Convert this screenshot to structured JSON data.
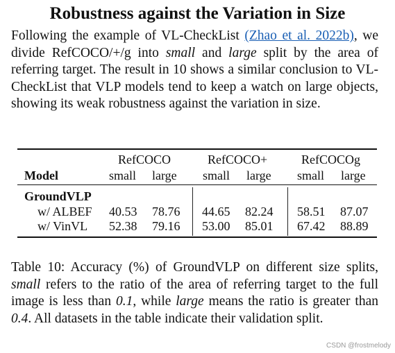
{
  "heading": "Robustness against the Variation in Size",
  "paragraph": {
    "before_link": "Following the example of VL-CheckList ",
    "link": "(Zhao et al. 2022b)",
    "after_link": ", we divide RefCOCO/+/g into ",
    "small": "small",
    "and": " and ",
    "large": "large",
    "rest": " split by the area of referring target. The result in 10 shows a similar conclusion to VL-CheckList that VLP models tend to keep a watch on large objects, showing its weak robustness against the variation in size."
  },
  "table": {
    "model_header": "Model",
    "groups": [
      "RefCOCO",
      "RefCOCO+",
      "RefCOCOg"
    ],
    "subheaders": [
      "small",
      "large",
      "small",
      "large",
      "small",
      "large"
    ],
    "section_label": "GroundVLP",
    "rows": [
      {
        "label": "w/ ALBEF",
        "values": [
          "40.53",
          "78.76",
          "44.65",
          "82.24",
          "58.51",
          "87.07"
        ]
      },
      {
        "label": "w/ VinVL",
        "values": [
          "52.38",
          "79.16",
          "53.00",
          "85.01",
          "67.42",
          "88.89"
        ]
      }
    ]
  },
  "caption": {
    "prefix": "Table 10: Accuracy (%) of GroundVLP on different size splits, ",
    "small": "small",
    "mid1": " refers to the ratio of the area of referring target to the full image is less than ",
    "v1": "0.1",
    "mid2": ", while ",
    "large": "large",
    "mid3": " means the ratio is greater than ",
    "v2": "0.4",
    "end": ". All datasets in the table indicate their validation split."
  },
  "watermark": "CSDN @frostmelody"
}
